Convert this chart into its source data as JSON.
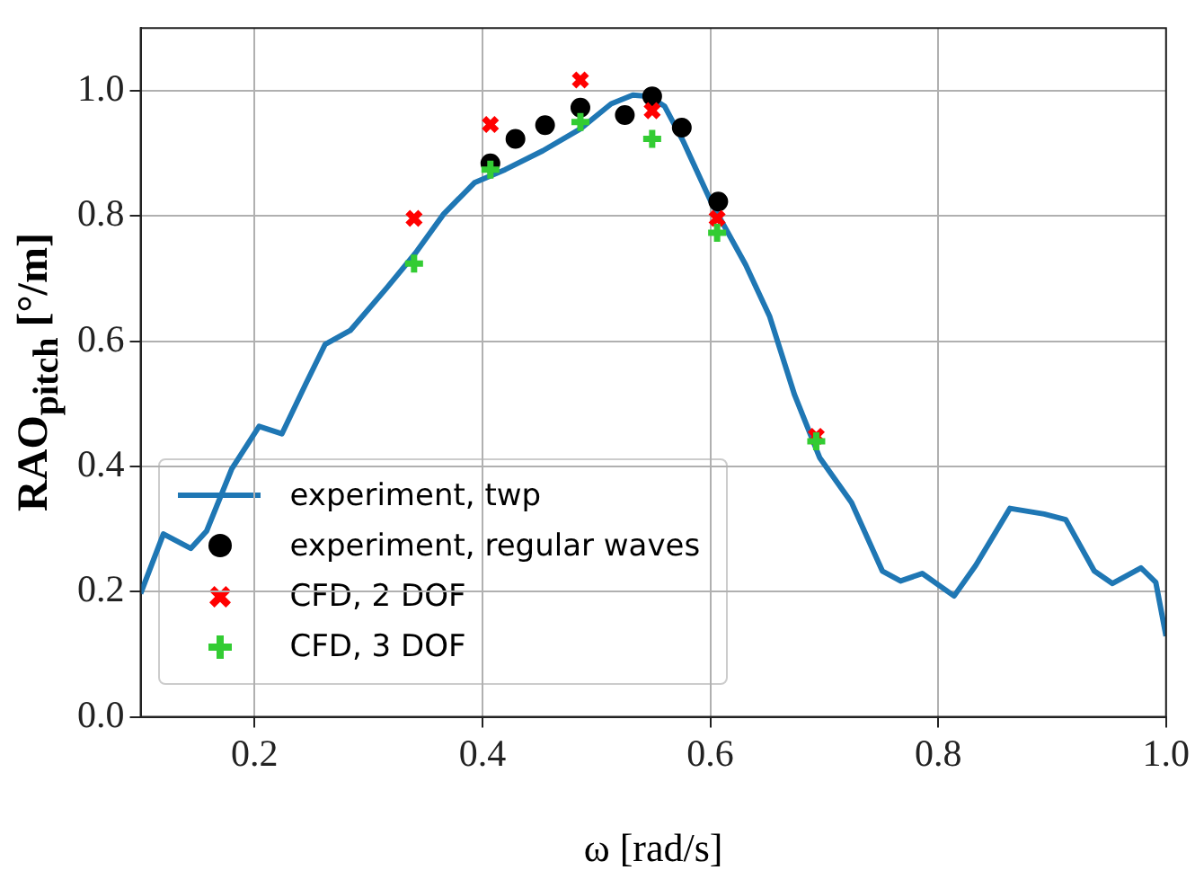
{
  "chart_data": {
    "type": "line",
    "xlabel": "ω [rad/s]",
    "ylabel": "RAO$_{pitch}$ [°/m]",
    "xlim": [
      0.1,
      1.0
    ],
    "xticks": [
      {
        "value": 0.2,
        "label": "0.2"
      },
      {
        "value": 0.4,
        "label": "0.4"
      },
      {
        "value": 0.6,
        "label": "0.6"
      },
      {
        "value": 0.8,
        "label": "0.8"
      },
      {
        "value": 1.0,
        "label": "1.0"
      }
    ],
    "ylim": [
      0,
      1.1
    ],
    "yticks": [
      {
        "value": 0,
        "label": "0.0"
      },
      {
        "value": 0.2,
        "label": "0.2"
      },
      {
        "value": 0.4,
        "label": "0.4"
      },
      {
        "value": 0.6,
        "label": "0.6"
      },
      {
        "value": 0.8,
        "label": "0.8"
      },
      {
        "value": 1.0,
        "label": "1.0"
      }
    ],
    "grid": true,
    "legend": "bottom left",
    "series": [
      {
        "name": "experiment, twp",
        "type": "line",
        "color": "#1f77b4",
        "marker": "none",
        "x": [
          0.1,
          0.12,
          0.144,
          0.158,
          0.18,
          0.204,
          0.224,
          0.245,
          0.262,
          0.284,
          0.316,
          0.341,
          0.366,
          0.393,
          0.42,
          0.453,
          0.486,
          0.513,
          0.532,
          0.546,
          0.56,
          0.576,
          0.601,
          0.631,
          0.652,
          0.674,
          0.696,
          0.724,
          0.751,
          0.767,
          0.786,
          0.814,
          0.833,
          0.863,
          0.893,
          0.912,
          0.937,
          0.953,
          0.978,
          0.991,
          1.0
        ],
        "values": [
          0.197,
          0.292,
          0.269,
          0.297,
          0.396,
          0.464,
          0.452,
          0.532,
          0.595,
          0.617,
          0.685,
          0.74,
          0.803,
          0.853,
          0.874,
          0.904,
          0.939,
          0.979,
          0.993,
          0.991,
          0.975,
          0.92,
          0.821,
          0.722,
          0.64,
          0.514,
          0.414,
          0.342,
          0.233,
          0.217,
          0.229,
          0.193,
          0.242,
          0.333,
          0.324,
          0.315,
          0.233,
          0.213,
          0.238,
          0.215,
          0.129
        ]
      },
      {
        "name": "experiment, regular waves",
        "type": "scatter",
        "color": "#000000",
        "marker": "circle",
        "x": [
          0.407,
          0.429,
          0.455,
          0.486,
          0.525,
          0.549,
          0.575,
          0.607
        ],
        "values": [
          0.884,
          0.923,
          0.945,
          0.973,
          0.961,
          0.991,
          0.941,
          0.823
        ]
      },
      {
        "name": "CFD, 2 DOF",
        "type": "scatter",
        "color": "#ff0000",
        "marker": "cross",
        "x": [
          0.34,
          0.407,
          0.486,
          0.549,
          0.606,
          0.693
        ],
        "values": [
          0.796,
          0.946,
          1.017,
          0.968,
          0.796,
          0.448
        ]
      },
      {
        "name": "CFD, 3 DOF",
        "type": "scatter",
        "color": "#33cc33",
        "marker": "plus",
        "x": [
          0.34,
          0.407,
          0.486,
          0.549,
          0.606,
          0.693
        ],
        "values": [
          0.724,
          0.874,
          0.95,
          0.923,
          0.773,
          0.44
        ]
      }
    ]
  }
}
